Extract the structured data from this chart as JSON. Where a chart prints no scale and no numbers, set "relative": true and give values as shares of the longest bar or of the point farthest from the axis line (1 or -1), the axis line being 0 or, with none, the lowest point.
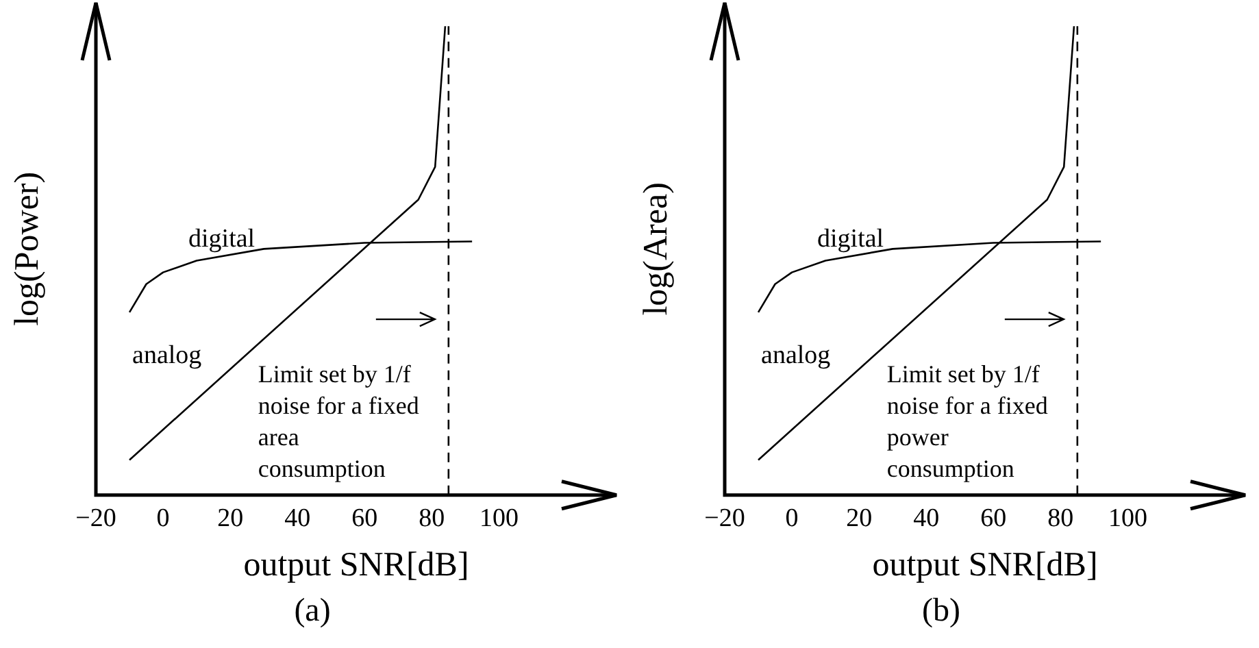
{
  "chart_data": [
    {
      "type": "line",
      "title": "(a)",
      "xlabel": "output SNR[dB]",
      "ylabel": "log(Power)",
      "relative": true,
      "xlim": [
        -20,
        135
      ],
      "xticks": [
        {
          "value": -20,
          "label": "−20"
        },
        0,
        20,
        40,
        60,
        80,
        100
      ],
      "series": [
        {
          "name": "digital",
          "color": "#000000",
          "x": [
            -10,
            -5,
            0,
            10,
            30,
            60,
            92
          ],
          "values": [
            0.39,
            0.45,
            0.475,
            0.5,
            0.525,
            0.538,
            0.541
          ]
        },
        {
          "name": "analog",
          "color": "#000000",
          "x": [
            -10,
            76,
            81,
            84
          ],
          "values": [
            0.075,
            0.63,
            0.7,
            1
          ]
        }
      ],
      "ref_lines": [
        {
          "axis": "x",
          "value": 85,
          "color": "#000000",
          "line_style": "dashed"
        }
      ],
      "annotations": [
        "Limit set by 1/f noise for a fixed area consumption"
      ],
      "grid": false,
      "legend": false,
      "marker": "none",
      "line_style": "solid"
    },
    {
      "type": "line",
      "title": "(b)",
      "xlabel": "output SNR[dB]",
      "ylabel": "log(Area)",
      "relative": true,
      "xlim": [
        -20,
        135
      ],
      "xticks": [
        {
          "value": -20,
          "label": "−20"
        },
        0,
        20,
        40,
        60,
        80,
        100
      ],
      "series": [
        {
          "name": "digital",
          "color": "#000000",
          "x": [
            -10,
            -5,
            0,
            10,
            30,
            60,
            92
          ],
          "values": [
            0.39,
            0.45,
            0.475,
            0.5,
            0.525,
            0.538,
            0.541
          ]
        },
        {
          "name": "analog",
          "color": "#000000",
          "x": [
            -10,
            76,
            81,
            84
          ],
          "values": [
            0.075,
            0.63,
            0.7,
            1
          ]
        }
      ],
      "ref_lines": [
        {
          "axis": "x",
          "value": 85,
          "color": "#000000",
          "line_style": "dashed"
        }
      ],
      "annotations": [
        "Limit set by 1/f noise for a fixed power consumption"
      ],
      "grid": false,
      "legend": false,
      "marker": "none",
      "line_style": "solid"
    }
  ]
}
